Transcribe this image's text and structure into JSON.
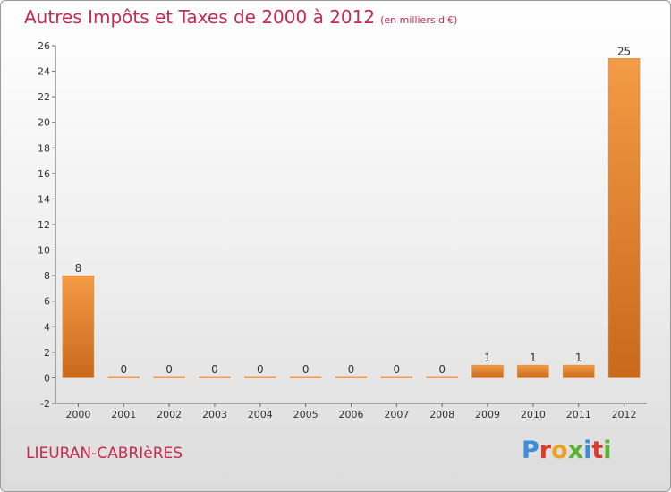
{
  "page": {
    "title": "Autres Impôts et Taxes de 2000 à 2012",
    "subtitle": "(en milliers d'€)",
    "commune": "LIEURAN-CABRIèRES",
    "brand": "Proxiti",
    "brand_colors": [
      "#3a8fd8",
      "#e03a2f",
      "#f0a020",
      "#5cb030",
      "#3a8fd8",
      "#e03a2f",
      "#5cb030"
    ]
  },
  "chart_data": {
    "type": "bar",
    "categories": [
      "2000",
      "2001",
      "2002",
      "2003",
      "2004",
      "2005",
      "2006",
      "2007",
      "2008",
      "2009",
      "2010",
      "2011",
      "2012"
    ],
    "values": [
      8,
      0,
      0,
      0,
      0,
      0,
      0,
      0,
      0,
      1,
      1,
      1,
      25
    ],
    "data_labels": [
      "8",
      "0",
      "0",
      "0",
      "0",
      "0",
      "0",
      "0",
      "0",
      "1",
      "1",
      "1",
      "25"
    ],
    "yticks": [
      -2,
      0,
      2,
      4,
      6,
      8,
      10,
      12,
      14,
      16,
      18,
      20,
      22,
      24,
      26
    ],
    "ylim": [
      -2,
      26
    ],
    "grid": false,
    "bar_color": "#f39b45",
    "bar_color_dark": "#c8691c"
  }
}
